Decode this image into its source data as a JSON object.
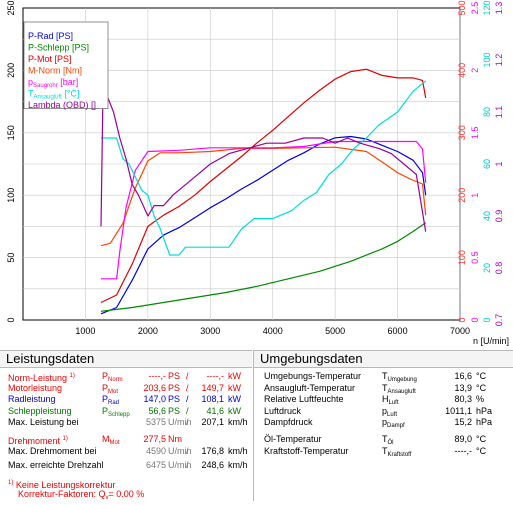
{
  "chart_data": {
    "type": "line",
    "xlabel": "n [U/min]",
    "xlim": [
      0,
      7000
    ],
    "x_ticks": [
      "1000",
      "2000",
      "3000",
      "4000",
      "5000",
      "6000",
      "7000"
    ],
    "left_axis": {
      "min": 0,
      "max": 250,
      "ticks": [
        "0",
        "50",
        "100",
        "150",
        "200",
        "250"
      ]
    },
    "right_axes": [
      {
        "color": "#ff3333",
        "ticks": [
          "0",
          "100",
          "200",
          "300",
          "400",
          "500"
        ]
      },
      {
        "color": "#ff00ff",
        "ticks": [
          "0",
          "0.5",
          "1",
          "1.5",
          "2",
          "2.5"
        ]
      },
      {
        "color": "#00cccc",
        "ticks": [
          "0",
          "20",
          "40",
          "60",
          "80",
          "100",
          "120"
        ]
      },
      {
        "color": "#aa00aa",
        "ticks": [
          "0.7",
          "0.8",
          "0.9",
          "1",
          "1.1",
          "1.2",
          "1.3"
        ]
      }
    ],
    "legend_placement": "top-left",
    "grid": true,
    "series": [
      {
        "name": "P-Rad [PS]",
        "color": "#0000dd",
        "x": [
          1250,
          1500,
          1750,
          2000,
          2250,
          2500,
          2750,
          3000,
          3250,
          3500,
          3750,
          4000,
          4250,
          4500,
          4750,
          5000,
          5250,
          5500,
          5750,
          6000,
          6250,
          6400,
          6450
        ],
        "y": [
          5,
          10,
          32,
          57,
          68,
          74,
          82,
          90,
          97,
          105,
          112,
          120,
          128,
          134,
          141,
          146,
          147,
          145,
          140,
          135,
          128,
          118,
          100
        ]
      },
      {
        "name": "P-Schlepp [PS]",
        "color": "#008800",
        "x": [
          1250,
          1500,
          1750,
          2000,
          2250,
          2500,
          2750,
          3000,
          3250,
          3500,
          3750,
          4000,
          4250,
          4500,
          4750,
          5000,
          5250,
          5500,
          5750,
          6000,
          6250,
          6450
        ],
        "y": [
          7,
          8.5,
          10,
          12,
          14,
          16,
          18,
          20,
          22,
          24.5,
          27,
          30,
          33,
          36,
          39,
          43,
          47,
          52,
          57,
          63,
          71,
          78
        ]
      },
      {
        "name": "P-Mot [PS]",
        "color": "#e00000",
        "x": [
          1250,
          1500,
          1750,
          2000,
          2250,
          2500,
          2750,
          3000,
          3250,
          3500,
          3750,
          4000,
          4250,
          4500,
          4750,
          5000,
          5250,
          5500,
          5750,
          6000,
          6250,
          6400,
          6450
        ],
        "y": [
          14,
          20,
          45,
          75,
          84,
          91,
          100,
          111,
          121,
          131,
          142,
          152,
          163,
          174,
          184,
          193,
          199,
          201,
          196,
          194,
          194,
          192,
          178
        ]
      },
      {
        "name": "M-Norm [Nm]",
        "color": "#ff4400",
        "x": [
          1250,
          1400,
          1600,
          1800,
          2000,
          2200,
          2500,
          3000,
          3500,
          4000,
          4500,
          5000,
          5500,
          5800,
          6000,
          6200,
          6400,
          6450
        ],
        "y": [
          119,
          123,
          155,
          212,
          255,
          268,
          268,
          270,
          275,
          275,
          276,
          277,
          270,
          250,
          236,
          226,
          218,
          168
        ]
      },
      {
        "name": "p_Saugrohr [bar]",
        "color": "#ff00ff",
        "x": [
          1250,
          1500,
          1550,
          1650,
          1800,
          2000,
          2500,
          3000,
          3500,
          4000,
          4500,
          5000,
          5500,
          6000,
          6300,
          6400,
          6450
        ],
        "y": [
          0.33,
          0.33,
          0.55,
          0.9,
          1.2,
          1.35,
          1.36,
          1.38,
          1.38,
          1.38,
          1.39,
          1.43,
          1.43,
          1.43,
          1.43,
          1.37,
          1.1
        ]
      },
      {
        "name": "T_Ansaugluft [°C]",
        "color": "#00dddd",
        "x": [
          1250,
          1500,
          1600,
          1700,
          1800,
          1900,
          2000,
          2100,
          2200,
          2350,
          2500,
          2600,
          3000,
          3300,
          3500,
          3700,
          4000,
          4300,
          4500,
          4700,
          4900,
          5100,
          5300,
          5500,
          5700,
          6000,
          6250,
          6450
        ],
        "y": [
          70,
          70,
          62,
          60,
          55,
          50,
          48,
          40,
          35,
          25,
          25,
          28,
          28,
          28,
          35,
          39,
          39,
          42,
          46,
          49,
          56,
          60,
          66,
          70,
          75,
          80,
          88,
          92
        ]
      },
      {
        "name": "Lambda (OBD) []",
        "color": "#990099",
        "x": [
          1250,
          1280,
          1350,
          1450,
          1550,
          1650,
          1750,
          1850,
          2000,
          2100,
          2250,
          2400,
          2600,
          2800,
          3000,
          3300,
          3600,
          3900,
          4200,
          4500,
          4800,
          5000,
          5200,
          5400,
          5700,
          5900,
          6100,
          6300,
          6450
        ],
        "y": [
          0.88,
          1.13,
          1.13,
          1.1,
          1.05,
          1.01,
          0.96,
          0.94,
          0.9,
          0.92,
          0.92,
          0.94,
          0.96,
          0.98,
          1.0,
          1.02,
          1.03,
          1.04,
          1.04,
          1.05,
          1.05,
          1.04,
          1.05,
          1.04,
          1.03,
          1.02,
          1.0,
          0.98,
          0.87
        ]
      }
    ]
  },
  "left_table": {
    "title": "Leistungsdaten",
    "rows": [
      {
        "label": "Norm-Leistung",
        "mark": "1)",
        "sym": "P",
        "sub": "Norm",
        "v1": "----,-",
        "u1": "PS",
        "v2": "----,-",
        "u2": "kW"
      },
      {
        "label": "Motorleistung",
        "mark": "",
        "sym": "P",
        "sub": "Mot",
        "v1": "203,6",
        "u1": "PS",
        "v2": "149,7",
        "u2": "kW"
      },
      {
        "label": "Radleistung",
        "mark": "",
        "sym": "P",
        "sub": "Rad",
        "v1": "147,0",
        "u1": "PS",
        "v2": "108,1",
        "u2": "kW"
      },
      {
        "label": "Schleppleistung",
        "mark": "",
        "sym": "P",
        "sub": "Schlepp",
        "v1": "56,6",
        "u1": "PS",
        "v2": "41,6",
        "u2": "kW"
      },
      {
        "label": "Max. Leistung bei",
        "mark": "",
        "sym": "",
        "sub": "",
        "v1": "5375",
        "u1": "U/min",
        "v2": "207,1",
        "u2": "km/h"
      },
      {
        "label": "Drehmoment",
        "mark": "1)",
        "sym": "M",
        "sub": "Mot",
        "v1": "277,5",
        "u1": "Nm",
        "v2": "",
        "u2": ""
      },
      {
        "label": "Max. Drehmoment bei",
        "mark": "",
        "sym": "",
        "sub": "",
        "v1": "4590",
        "u1": "U/min",
        "v2": "176,8",
        "u2": "km/h"
      },
      {
        "label": "Max. erreichte Drehzahl",
        "mark": "",
        "sym": "",
        "sub": "",
        "v1": "6475",
        "u1": "U/min",
        "v2": "248,6",
        "u2": "km/h"
      }
    ],
    "footnote1": "Keine Leistungskorrektur",
    "footnote_mark": "1)",
    "footnote2_prefix": "Korrektur-Faktoren:",
    "footnote2_sym": "Q",
    "footnote2_sub": "v",
    "footnote2_value": "=   0.00 %"
  },
  "right_table": {
    "title": "Umgebungsdaten",
    "rows": [
      {
        "label": "Umgebungs-Temperatur",
        "sym": "T",
        "sub": "Umgebung",
        "value": "16,6",
        "unit": "°C"
      },
      {
        "label": "Ansaugluft-Temperatur",
        "sym": "T",
        "sub": "Ansaugluft",
        "value": "13,9",
        "unit": "°C"
      },
      {
        "label": "Relative Luftfeuchte",
        "sym": "H",
        "sub": "Luft",
        "value": "80,3",
        "unit": "%"
      },
      {
        "label": "Luftdruck",
        "sym": "p",
        "sub": "Luft",
        "value": "1011,1",
        "unit": "hPa"
      },
      {
        "label": "Dampfdruck",
        "sym": "p",
        "sub": "Dampf",
        "value": "15,2",
        "unit": "hPa"
      },
      {
        "label": "Öl-Temperatur",
        "sym": "T",
        "sub": "Öl",
        "value": "89,0",
        "unit": "°C"
      },
      {
        "label": "Kraftstoff-Temperatur",
        "sym": "T",
        "sub": "Kraftstoff",
        "value": "----,-",
        "unit": "°C"
      }
    ]
  }
}
